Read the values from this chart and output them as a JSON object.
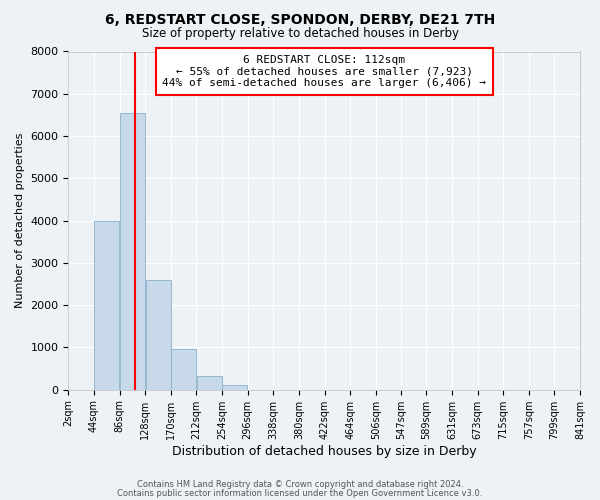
{
  "title": "6, REDSTART CLOSE, SPONDON, DERBY, DE21 7TH",
  "subtitle": "Size of property relative to detached houses in Derby",
  "xlabel": "Distribution of detached houses by size in Derby",
  "ylabel": "Number of detached properties",
  "bar_color": "#c8d9ea",
  "bar_edge_color": "#8ab0cc",
  "background_color": "#edf2f7",
  "grid_color": "#ffffff",
  "bin_edges": [
    2,
    44,
    86,
    128,
    170,
    212,
    254,
    296,
    338,
    380,
    422,
    464,
    506,
    547,
    589,
    631,
    673,
    715,
    757,
    799,
    841
  ],
  "bin_labels": [
    "2sqm",
    "44sqm",
    "86sqm",
    "128sqm",
    "170sqm",
    "212sqm",
    "254sqm",
    "296sqm",
    "338sqm",
    "380sqm",
    "422sqm",
    "464sqm",
    "506sqm",
    "547sqm",
    "589sqm",
    "631sqm",
    "673sqm",
    "715sqm",
    "757sqm",
    "799sqm",
    "841sqm"
  ],
  "values": [
    0,
    4000,
    6550,
    2600,
    960,
    330,
    120,
    0,
    0,
    0,
    0,
    0,
    0,
    0,
    0,
    0,
    0,
    0,
    0,
    0
  ],
  "property_line_x": 112,
  "annotation_title": "6 REDSTART CLOSE: 112sqm",
  "annotation_line1": "← 55% of detached houses are smaller (7,923)",
  "annotation_line2": "44% of semi-detached houses are larger (6,406) →",
  "ylim": [
    0,
    8000
  ],
  "yticks": [
    0,
    1000,
    2000,
    3000,
    4000,
    5000,
    6000,
    7000,
    8000
  ],
  "footer_line1": "Contains HM Land Registry data © Crown copyright and database right 2024.",
  "footer_line2": "Contains public sector information licensed under the Open Government Licence v3.0."
}
